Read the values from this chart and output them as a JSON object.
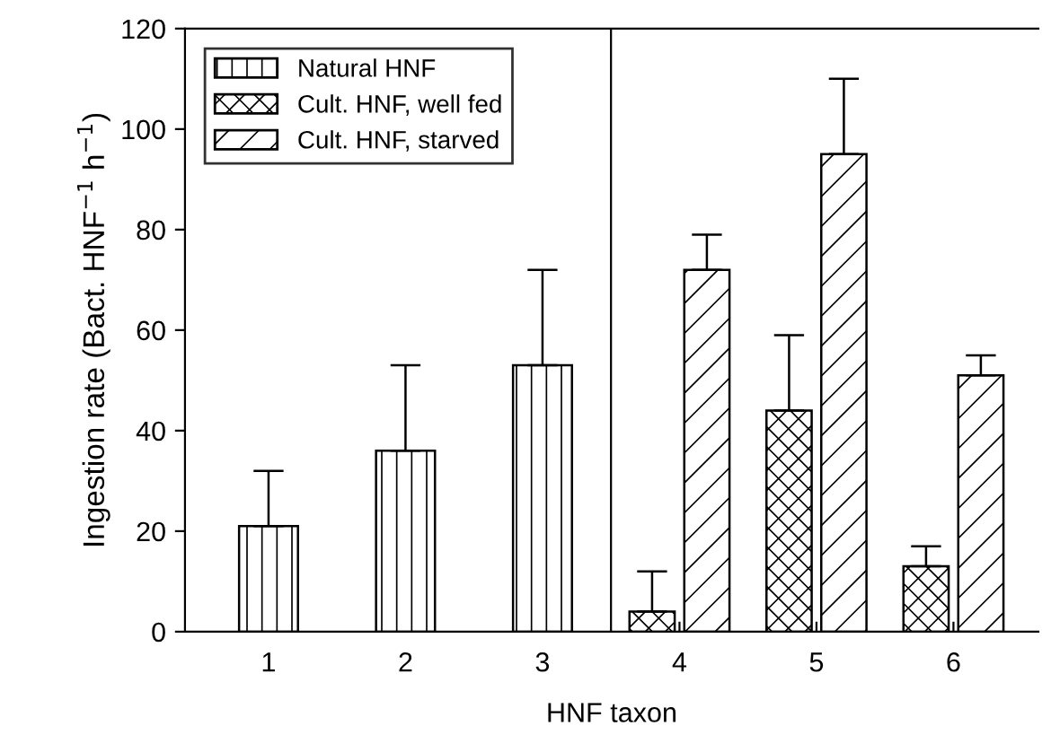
{
  "chart_data": {
    "type": "bar",
    "xlabel": "HNF taxon",
    "ylabel": "Ingestion rate (Bact. HNF$^{−1}$ h$^{−1}$)",
    "x": [
      1,
      2,
      3,
      4,
      5,
      6
    ],
    "xlim": [
      0.39,
      6.62
    ],
    "xticks": [
      1,
      2,
      3,
      4,
      5,
      6
    ],
    "ylim": [
      0,
      120
    ],
    "yticks": [
      0,
      20,
      40,
      60,
      80,
      100,
      120
    ],
    "series": [
      {
        "name": "Natural HNF",
        "color": "#000000",
        "values": [
          21,
          36,
          53,
          null,
          null,
          null
        ],
        "errors": [
          [
            21,
            32
          ],
          [
            36,
            53
          ],
          [
            53,
            72
          ],
          null,
          null,
          null
        ]
      },
      {
        "name": "Cult. HNF, well fed",
        "color": "#000000",
        "values": [
          null,
          null,
          null,
          4,
          44,
          13
        ],
        "errors": [
          null,
          null,
          null,
          [
            4,
            12
          ],
          [
            44,
            59
          ],
          [
            13,
            17
          ]
        ]
      },
      {
        "name": "Cult. HNF, starved",
        "color": "#000000",
        "values": [
          null,
          null,
          null,
          72,
          95,
          51
        ],
        "errors": [
          null,
          null,
          null,
          [
            72,
            79
          ],
          [
            95,
            110
          ],
          [
            51,
            55
          ]
        ]
      }
    ],
    "ref_lines": [
      {
        "axis": "x",
        "value": 3.5,
        "label": null,
        "color": "#000000",
        "line_style": "solid"
      }
    ],
    "legend": "top left",
    "grid": false
  }
}
